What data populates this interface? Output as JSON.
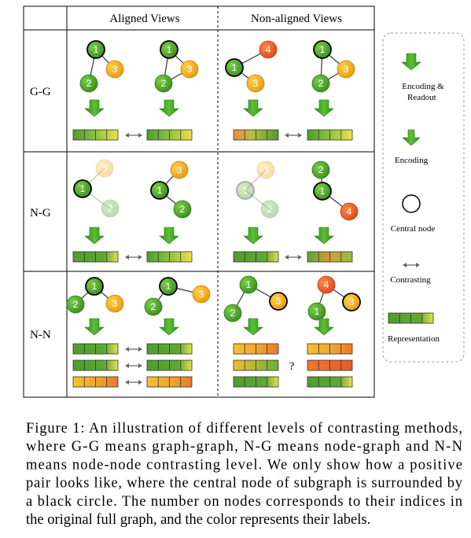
{
  "header": {
    "columns": [
      "Aligned Views",
      "Non-aligned Views"
    ]
  },
  "rows": [
    {
      "label": "G-G",
      "aligned": [
        [
          1,
          3,
          2
        ],
        [
          1,
          3,
          2
        ]
      ],
      "non_aligned": [
        [
          4,
          1,
          3
        ],
        [
          1,
          3,
          2
        ]
      ]
    },
    {
      "label": "N-G",
      "aligned": [
        [
          3,
          1,
          2
        ],
        [
          3,
          1,
          2
        ]
      ],
      "non_aligned": [
        [
          3,
          1,
          2
        ],
        [
          2,
          1,
          4
        ]
      ]
    },
    {
      "label": "N-N",
      "aligned": [
        [
          1,
          2,
          3
        ],
        [
          1,
          3,
          2
        ]
      ],
      "non_aligned": [
        [
          1,
          3,
          2
        ],
        [
          4,
          3,
          1
        ]
      ]
    }
  ],
  "question_mark": "?",
  "legend": {
    "encoding_readout": [
      "Encoding &",
      "Readout"
    ],
    "encoding": "Encoding",
    "central_node": "Central node",
    "contrasting": "Contrasting",
    "representation": "Representation"
  },
  "caption": [
    "Figure 1: An illustration of different levels of contrasting methods,",
    "where G-G means graph-graph, N-G means node-graph and N-N",
    "means node-node contrasting level.  We only show how a positive",
    "pair looks like, where the central node of subgraph is surrounded by",
    "a black circle. The number on nodes corresponds to their indices in",
    "the original full graph, and the color represents their labels."
  ]
}
